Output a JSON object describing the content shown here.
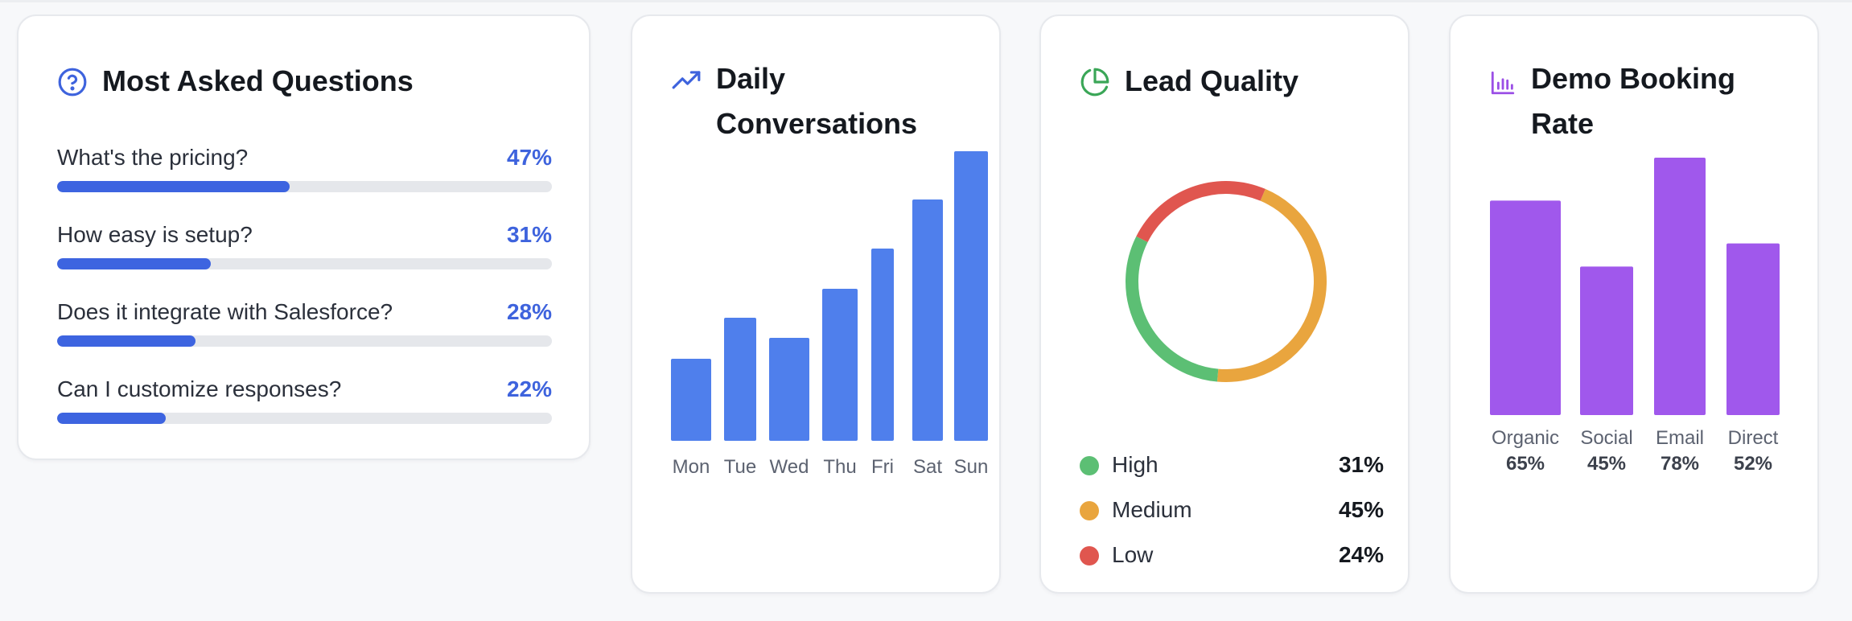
{
  "questions": {
    "title": "Most Asked Questions",
    "icon": "question-circle-icon",
    "accent": "#3e63dd",
    "items": [
      {
        "label": "What's the pricing?",
        "pct_text": "47%",
        "value": 47
      },
      {
        "label": "How easy is setup?",
        "pct_text": "31%",
        "value": 31
      },
      {
        "label": "Does it integrate with Salesforce?",
        "pct_text": "28%",
        "value": 28
      },
      {
        "label": "Can I customize responses?",
        "pct_text": "22%",
        "value": 22
      }
    ]
  },
  "daily": {
    "title_line1": "Daily",
    "title_line2": "Conversations",
    "icon": "trending-up-icon",
    "color": "#4f7fec"
  },
  "lead": {
    "title": "Lead Quality",
    "icon": "pie-chart-icon",
    "items": [
      {
        "label": "High",
        "value_text": "31%",
        "color": "#5cbf74"
      },
      {
        "label": "Medium",
        "value_text": "45%",
        "color": "#e9a53e"
      },
      {
        "label": "Low",
        "value_text": "24%",
        "color": "#e0564f"
      }
    ]
  },
  "booking": {
    "title_line1": "Demo Booking",
    "title_line2": "Rate",
    "icon": "bar-chart-icon",
    "color": "#a058ec"
  },
  "chart_data": [
    {
      "type": "bar",
      "title": "Most Asked Questions",
      "categories": [
        "What's the pricing?",
        "How easy is setup?",
        "Does it integrate with Salesforce?",
        "Can I customize responses?"
      ],
      "values": [
        47,
        31,
        28,
        22
      ],
      "ylim": [
        0,
        100
      ]
    },
    {
      "type": "bar",
      "title": "Daily Conversations",
      "categories": [
        "Mon",
        "Tue",
        "Wed",
        "Thu",
        "Fri",
        "Sat",
        "Sun"
      ],
      "values": [
        102,
        153,
        128,
        189,
        239,
        300,
        360
      ],
      "ylim": [
        0,
        360
      ],
      "grid": false
    },
    {
      "type": "pie",
      "title": "Lead Quality",
      "categories": [
        "High",
        "Medium",
        "Low"
      ],
      "values": [
        31,
        45,
        24
      ],
      "labels": [
        "31%",
        "45%",
        "24%"
      ],
      "legend": "bottom"
    },
    {
      "type": "bar",
      "title": "Demo Booking Rate",
      "categories": [
        "Organic",
        "Social",
        "Email",
        "Direct"
      ],
      "values": [
        65,
        45,
        78,
        52
      ],
      "labels": [
        "65%",
        "45%",
        "78%",
        "52%"
      ],
      "ylim": [
        0,
        78
      ]
    }
  ]
}
